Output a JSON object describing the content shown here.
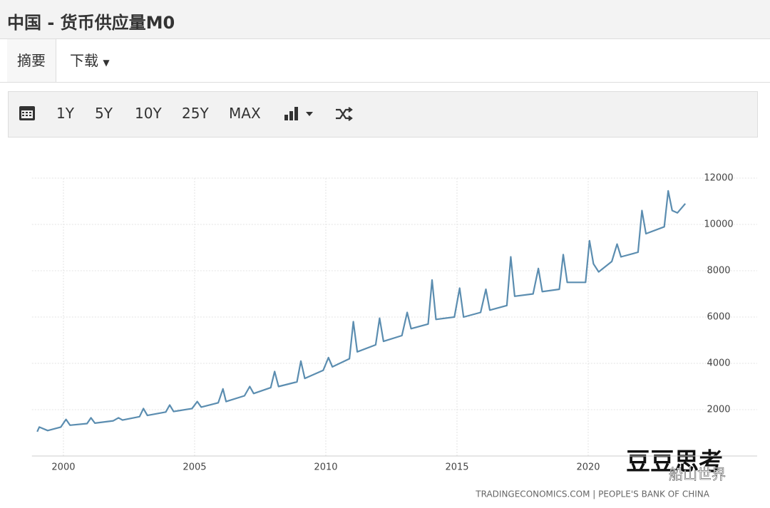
{
  "header": {
    "title": "中国 - 货币供应量M0"
  },
  "tabs": [
    "摘要",
    "下载"
  ],
  "toolbar": [
    "1Y",
    "5Y",
    "10Y",
    "25Y",
    "MAX"
  ],
  "watermark": [
    "豆豆思考",
    "船山世界"
  ],
  "chart_data": {
    "type": "line",
    "color": "#5b8db0",
    "grid": true,
    "source": "TRADINGECONOMICS.COM | PEOPLE'S BANK OF CHINA",
    "xlim": [
      1998.8,
      2023.75
    ],
    "xticks": [
      2000,
      2005,
      2010,
      2015,
      2020
    ],
    "ylim": [
      0,
      12000
    ],
    "yticks": [
      2000,
      4000,
      6000,
      8000,
      10000,
      12000
    ],
    "x": [
      1999.0,
      1999.08,
      1999.4,
      1999.9,
      2000.1,
      2000.25,
      2000.9,
      2001.05,
      2001.2,
      2001.9,
      2002.1,
      2002.25,
      2002.9,
      2003.05,
      2003.2,
      2003.9,
      2004.05,
      2004.2,
      2004.9,
      2005.1,
      2005.25,
      2005.9,
      2006.08,
      2006.2,
      2006.9,
      2007.1,
      2007.25,
      2007.9,
      2008.05,
      2008.2,
      2008.9,
      2009.05,
      2009.2,
      2009.9,
      2010.1,
      2010.25,
      2010.9,
      2011.05,
      2011.2,
      2011.9,
      2012.05,
      2012.2,
      2012.9,
      2013.1,
      2013.25,
      2013.9,
      2014.05,
      2014.2,
      2014.9,
      2015.1,
      2015.25,
      2015.9,
      2016.1,
      2016.25,
      2016.9,
      2017.05,
      2017.2,
      2017.9,
      2018.1,
      2018.25,
      2018.9,
      2019.05,
      2019.2,
      2019.9,
      2020.05,
      2020.2,
      2020.4,
      2020.9,
      2021.1,
      2021.25,
      2021.9,
      2022.05,
      2022.2,
      2022.9,
      2023.05,
      2023.2,
      2023.4,
      2023.7
    ],
    "values": [
      1050,
      1250,
      1100,
      1250,
      1580,
      1330,
      1400,
      1650,
      1420,
      1520,
      1650,
      1550,
      1700,
      2050,
      1750,
      1900,
      2200,
      1920,
      2050,
      2350,
      2110,
      2300,
      2900,
      2350,
      2600,
      3000,
      2700,
      2950,
      3650,
      3000,
      3200,
      4100,
      3350,
      3700,
      4250,
      3850,
      4200,
      5800,
      4500,
      4800,
      5950,
      4950,
      5200,
      6200,
      5500,
      5700,
      7600,
      5900,
      6000,
      7250,
      6000,
      6200,
      7200,
      6300,
      6500,
      8600,
      6900,
      7000,
      8100,
      7100,
      7200,
      8700,
      7500,
      7500,
      9300,
      8300,
      7950,
      8400,
      9150,
      8600,
      8800,
      10600,
      9600,
      9900,
      11450,
      10600,
      10500,
      10900
    ]
  }
}
